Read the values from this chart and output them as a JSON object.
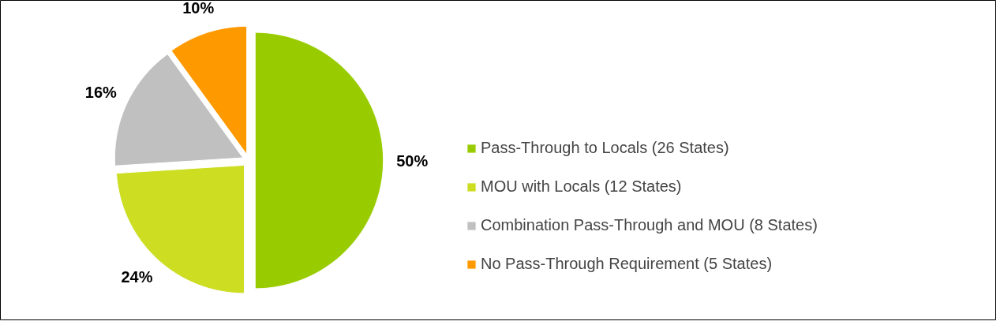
{
  "chart_data": {
    "type": "pie",
    "categories": [
      "Pass-Through to Locals (26 States)",
      "MOU with Locals (12 States)",
      "Combination Pass-Through and MOU (8 States)",
      "No Pass-Through Requirement (5 States)"
    ],
    "values": [
      50,
      24,
      16,
      10
    ],
    "value_labels": [
      "50%",
      "24%",
      "16%",
      "10%"
    ],
    "colors": [
      "#99cc00",
      "#ccdd22",
      "#c0c0c0",
      "#ff9900"
    ],
    "legend": "right"
  }
}
